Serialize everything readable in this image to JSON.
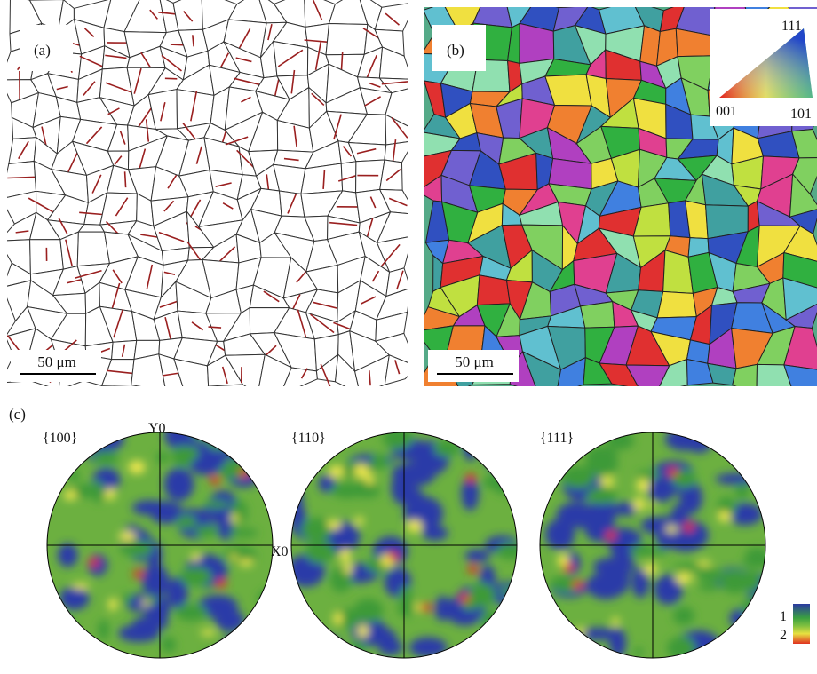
{
  "panels": {
    "a": {
      "label": "(a)",
      "scale_bar": "50 μm"
    },
    "b": {
      "label": "(b)",
      "scale_bar": "50 μm",
      "ipf_key": {
        "top": "111",
        "left": "001",
        "right": "101"
      }
    },
    "c": {
      "label": "(c)",
      "pole_figures": [
        {
          "title": "{100}"
        },
        {
          "title": "{110}"
        },
        {
          "title": "{111}"
        }
      ],
      "axis_y": "Y0",
      "axis_x": "X0",
      "colorbar": [
        "1",
        "2"
      ]
    }
  }
}
